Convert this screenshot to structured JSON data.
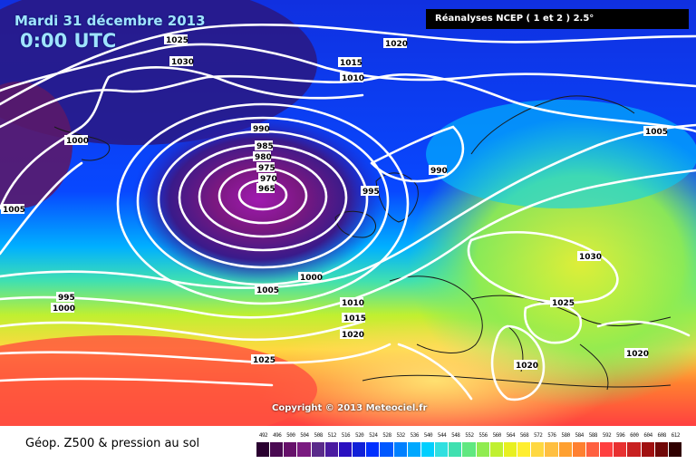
{
  "header": {
    "date": "Mardi 31 décembre 2013",
    "time": "0:00 UTC",
    "source": "Réanalyses NCEP ( 1 et 2 ) 2.5°"
  },
  "copyright": "Copyright © 2013 Meteociel.fr",
  "legend": {
    "title": "Géop. Z500 & pression au sol",
    "scale_values": [
      "492",
      "496",
      "500",
      "504",
      "508",
      "512",
      "516",
      "520",
      "524",
      "528",
      "532",
      "536",
      "540",
      "544",
      "548",
      "552",
      "556",
      "560",
      "564",
      "568",
      "572",
      "576",
      "580",
      "584",
      "588",
      "592",
      "596",
      "600",
      "604",
      "608",
      "612"
    ],
    "scale_colors": [
      "#2a0030",
      "#4a0a52",
      "#66106a",
      "#7a1a80",
      "#5a2a8a",
      "#4a1aa0",
      "#2a10c0",
      "#1020d8",
      "#0030ff",
      "#0058ff",
      "#0080ff",
      "#00a8ff",
      "#00cfff",
      "#30e0e0",
      "#40e0b0",
      "#60e880",
      "#90ec50",
      "#c0f030",
      "#e8f020",
      "#ffee30",
      "#ffd840",
      "#ffbf40",
      "#ffa030",
      "#ff8030",
      "#ff6040",
      "#ff4040",
      "#e83030",
      "#c82020",
      "#a01010",
      "#700808",
      "#300000"
    ]
  },
  "isobars": [
    {
      "label": "1025"
    },
    {
      "label": "1030"
    },
    {
      "label": "1020"
    },
    {
      "label": "1015"
    },
    {
      "label": "1010"
    },
    {
      "label": "1000"
    },
    {
      "label": "1005"
    },
    {
      "label": "990"
    },
    {
      "label": "985"
    },
    {
      "label": "980"
    },
    {
      "label": "975"
    },
    {
      "label": "970"
    },
    {
      "label": "965"
    },
    {
      "label": "995"
    },
    {
      "label": "990"
    },
    {
      "label": "1005"
    },
    {
      "label": "1000"
    },
    {
      "label": "1005"
    },
    {
      "label": "995"
    },
    {
      "label": "1000"
    },
    {
      "label": "1010"
    },
    {
      "label": "1015"
    },
    {
      "label": "1020"
    },
    {
      "label": "1025"
    },
    {
      "label": "1030"
    },
    {
      "label": "1025"
    },
    {
      "label": "1020"
    },
    {
      "label": "1020"
    }
  ]
}
